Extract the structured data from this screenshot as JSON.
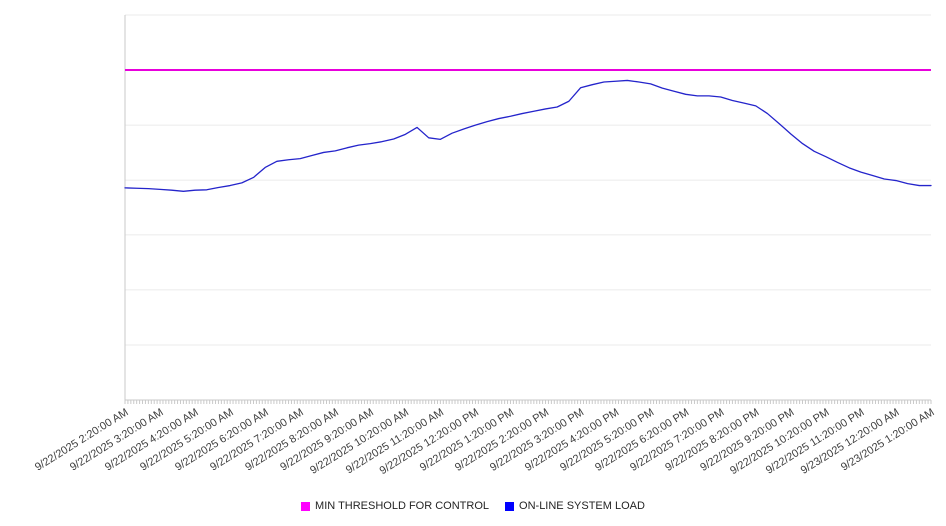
{
  "page": {
    "background": "#ffffff"
  },
  "chart": {
    "title": "",
    "legend": {
      "items": [
        {
          "label": "MIN THRESHOLD FOR CONTROL",
          "color": "#ff00ff"
        },
        {
          "label": "ON-LINE SYSTEM LOAD",
          "color": "#0000ff"
        }
      ]
    }
  },
  "chart_data": {
    "type": "line",
    "title": "",
    "x_axis": {
      "tick_labels": [
        "9/22/2025 2:20:00 AM",
        "9/22/2025 3:20:00 AM",
        "9/22/2025 4:20:00 AM",
        "9/22/2025 5:20:00 AM",
        "9/22/2025 6:20:00 AM",
        "9/22/2025 7:20:00 AM",
        "9/22/2025 8:20:00 AM",
        "9/22/2025 9:20:00 AM",
        "9/22/2025 10:20:00 AM",
        "9/22/2025 11:20:00 AM",
        "9/22/2025 12:20:00 PM",
        "9/22/2025 1:20:00 PM",
        "9/22/2025 2:20:00 PM",
        "9/22/2025 3:20:00 PM",
        "9/22/2025 4:20:00 PM",
        "9/22/2025 5:20:00 PM",
        "9/22/2025 6:20:00 PM",
        "9/22/2025 7:20:00 PM",
        "9/22/2025 8:20:00 PM",
        "9/22/2025 9:20:00 PM",
        "9/22/2025 10:20:00 PM",
        "9/22/2025 11:20:00 PM",
        "9/23/2025 12:20:00 AM",
        "9/23/2025 1:20:00 AM"
      ],
      "minor_ticks_per_hour": 12,
      "label_rotation_deg": -32
    },
    "y_axis": {
      "tick_labels_visible": false,
      "range_relative_percent": [
        0,
        100
      ],
      "gridline_values": [
        0,
        14.3,
        28.6,
        42.9,
        57.1,
        71.4,
        85.7,
        100
      ]
    },
    "series": [
      {
        "name": "MIN THRESHOLD FOR CONTROL",
        "type": "constant-line",
        "color": "#e800dc",
        "value": 85.7
      },
      {
        "name": "ON-LINE SYSTEM LOAD",
        "type": "line",
        "color": "#2424cb",
        "x_start": "9/22/2025 2:20:00 AM",
        "x_end": "9/23/2025 1:20:00 AM",
        "interval_minutes": 20,
        "times": [
          "2:20 AM",
          "2:40 AM",
          "3:00 AM",
          "3:20 AM",
          "3:40 AM",
          "4:00 AM",
          "4:20 AM",
          "4:40 AM",
          "5:00 AM",
          "5:20 AM",
          "5:40 AM",
          "6:00 AM",
          "6:20 AM",
          "6:40 AM",
          "7:00 AM",
          "7:20 AM",
          "7:40 AM",
          "8:00 AM",
          "8:20 AM",
          "8:40 AM",
          "9:00 AM",
          "9:20 AM",
          "9:40 AM",
          "10:00 AM",
          "10:20 AM",
          "10:40 AM",
          "11:00 AM",
          "11:20 AM",
          "11:40 AM",
          "12:00 PM",
          "12:20 PM",
          "12:40 PM",
          "1:00 PM",
          "1:20 PM",
          "1:40 PM",
          "2:00 PM",
          "2:20 PM",
          "2:40 PM",
          "3:00 PM",
          "3:20 PM",
          "3:40 PM",
          "4:00 PM",
          "4:20 PM",
          "4:40 PM",
          "5:00 PM",
          "5:20 PM",
          "5:40 PM",
          "6:00 PM",
          "6:20 PM",
          "6:40 PM",
          "7:00 PM",
          "7:20 PM",
          "7:40 PM",
          "8:00 PM",
          "8:20 PM",
          "8:40 PM",
          "9:00 PM",
          "9:20 PM",
          "9:40 PM",
          "10:00 PM",
          "10:20 PM",
          "10:40 PM",
          "11:00 PM",
          "11:20 PM",
          "11:40 PM",
          "12:00 AM",
          "12:20 AM",
          "12:40 AM",
          "1:00 AM",
          "1:20 AM"
        ],
        "values": [
          55.1,
          55.0,
          54.9,
          54.7,
          54.5,
          54.2,
          54.5,
          54.6,
          55.2,
          55.7,
          56.4,
          57.8,
          60.4,
          62.0,
          62.4,
          62.7,
          63.5,
          64.3,
          64.7,
          65.5,
          66.2,
          66.6,
          67.1,
          67.8,
          69.0,
          70.8,
          68.1,
          67.7,
          69.3,
          70.4,
          71.4,
          72.3,
          73.1,
          73.7,
          74.4,
          75.0,
          75.6,
          76.1,
          77.6,
          81.1,
          81.9,
          82.6,
          82.8,
          83.0,
          82.6,
          82.1,
          81.0,
          80.2,
          79.4,
          79.0,
          79.0,
          78.7,
          77.8,
          77.1,
          76.4,
          74.4,
          71.8,
          69.1,
          66.6,
          64.6,
          63.2,
          61.7,
          60.3,
          59.2,
          58.3,
          57.4,
          57.0,
          56.2,
          55.7,
          55.7
        ]
      }
    ]
  }
}
